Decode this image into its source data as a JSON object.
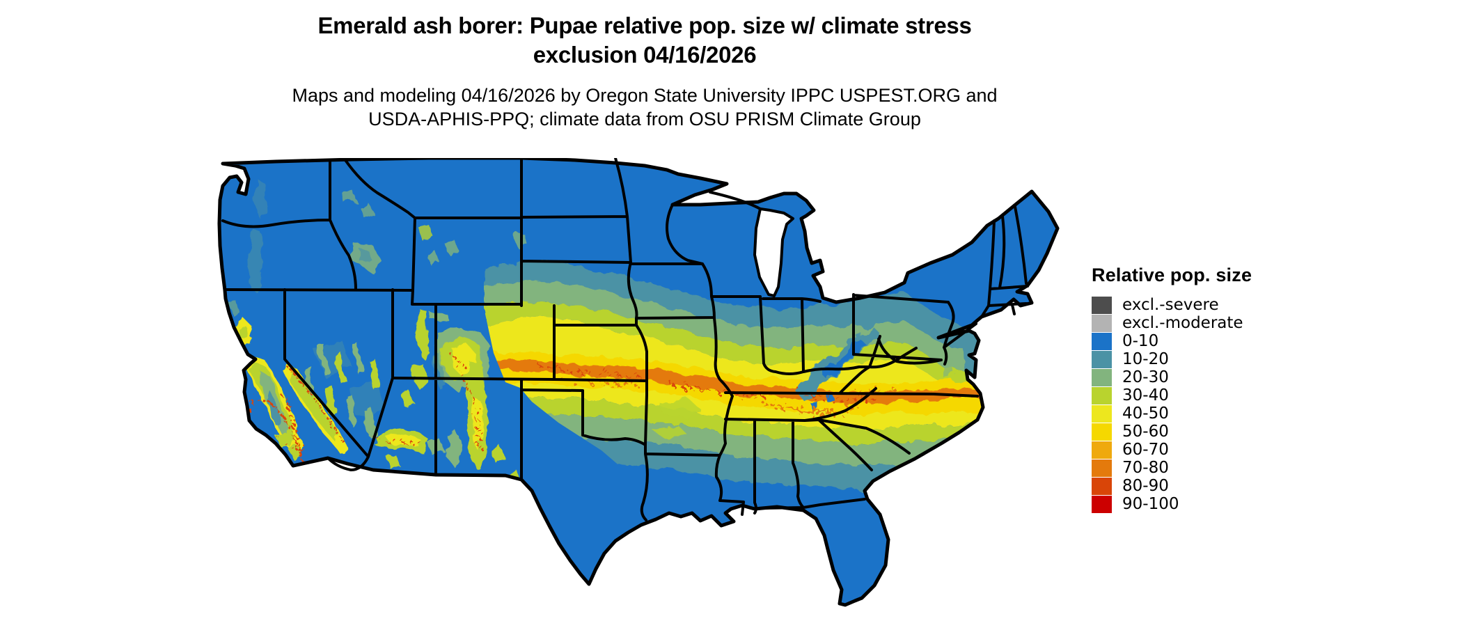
{
  "title": {
    "line1": "Emerald ash borer: Pupae relative pop. size w/ climate stress",
    "line2": "exclusion 04/16/2026"
  },
  "subtitle": {
    "line1": "Maps and modeling 04/16/2026 by Oregon State University IPPC USPEST.ORG and",
    "line2": "USDA-APHIS-PPQ; climate data from OSU PRISM Climate Group"
  },
  "legend": {
    "title": "Relative pop. size",
    "items": [
      {
        "label": "excl.-severe",
        "color": "#4D4D4D"
      },
      {
        "label": "excl.-moderate",
        "color": "#B3B3B3"
      },
      {
        "label": "0-10",
        "color": "#1B73C8"
      },
      {
        "label": "10-20",
        "color": "#4B92A5"
      },
      {
        "label": "20-30",
        "color": "#82B47E"
      },
      {
        "label": "30-40",
        "color": "#B9D32E"
      },
      {
        "label": "40-50",
        "color": "#EDE71E"
      },
      {
        "label": "50-60",
        "color": "#F5D800"
      },
      {
        "label": "60-70",
        "color": "#EFA90D"
      },
      {
        "label": "70-80",
        "color": "#E47A0C"
      },
      {
        "label": "80-90",
        "color": "#D94508"
      },
      {
        "label": "90-100",
        "color": "#CC0000"
      }
    ]
  },
  "palette": {
    "excl_severe": "#4D4D4D",
    "excl_moderate": "#B3B3B3",
    "c0_10": "#1B73C8",
    "c10_20": "#4B92A5",
    "c20_30": "#82B47E",
    "c30_40": "#B9D32E",
    "c40_50": "#EDE71E",
    "c50_60": "#F5D800",
    "c60_70": "#EFA90D",
    "c70_80": "#E47A0C",
    "c80_90": "#D94508",
    "c90_100": "#CC0000"
  },
  "map": {
    "background_color": "#FFFFFF",
    "water_color": "#FFFFFF",
    "state_border_color": "#000000",
    "base_fill": "#1B73C8"
  }
}
